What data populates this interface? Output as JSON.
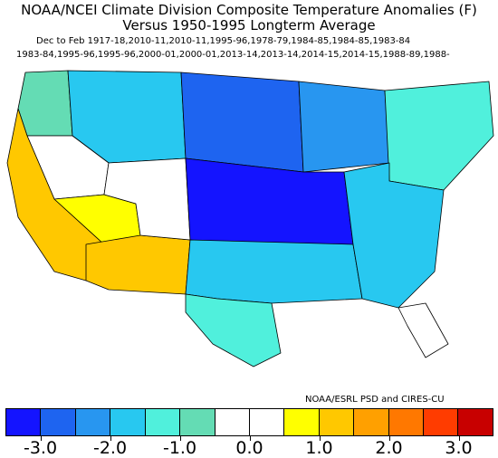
{
  "header": {
    "title_line1": "NOAA/NCEI Climate Division Composite Temperature Anomalies (F)",
    "title_line2": "Versus 1950-1995 Longterm Average",
    "years_line1": "Dec to Feb  1917-18,2010-11,2010-11,1995-96,1978-79,1984-85,1984-85,1983-84",
    "years_line2": "1983-84,1995-96,1995-96,2000-01,2000-01,2013-14,2013-14,2014-15,2014-15,1988-89,1988-"
  },
  "credit": "NOAA/ESRL PSD and CIRES-CU",
  "legend": {
    "colors": [
      "#1414ff",
      "#1e64f0",
      "#2896f0",
      "#28c8f0",
      "#50f0dc",
      "#64dcb4",
      "#ffffff",
      "#ffffff",
      "#ffff00",
      "#ffc800",
      "#ffa000",
      "#ff7800",
      "#ff3c00",
      "#c80000"
    ],
    "tick_labels": [
      "-3.0",
      "-2.0",
      "-1.0",
      "0.0",
      "1.0",
      "2.0",
      "3.0"
    ]
  },
  "regions": [
    {
      "name": "pacific-northwest",
      "anomaly": -1.0,
      "color": "#64dcb4"
    },
    {
      "name": "northern-rockies",
      "anomaly": -2.0,
      "color": "#28c8f0"
    },
    {
      "name": "northern-plains",
      "anomaly": -2.5,
      "color": "#1e64f0"
    },
    {
      "name": "midwest",
      "anomaly": -3.0,
      "color": "#1414ff"
    },
    {
      "name": "great-lakes",
      "anomaly": -2.0,
      "color": "#2896f0"
    },
    {
      "name": "northeast",
      "anomaly": -1.0,
      "color": "#50f0dc"
    },
    {
      "name": "southeast",
      "anomaly": -1.5,
      "color": "#28c8f0"
    },
    {
      "name": "south-central",
      "anomaly": -2.0,
      "color": "#28c8f0"
    },
    {
      "name": "texas",
      "anomaly": -1.0,
      "color": "#50f0dc"
    },
    {
      "name": "southern-plains-west",
      "anomaly": 0.0,
      "color": "#ffffff"
    },
    {
      "name": "great-basin",
      "anomaly": 0.0,
      "color": "#ffffff"
    },
    {
      "name": "california",
      "anomaly": 1.5,
      "color": "#ffc800"
    },
    {
      "name": "arizona",
      "anomaly": 1.5,
      "color": "#ffc800"
    },
    {
      "name": "utah-colorado-plateau",
      "anomaly": 1.0,
      "color": "#ffff00"
    },
    {
      "name": "florida",
      "anomaly": -0.5,
      "color": "#ffffff"
    }
  ]
}
